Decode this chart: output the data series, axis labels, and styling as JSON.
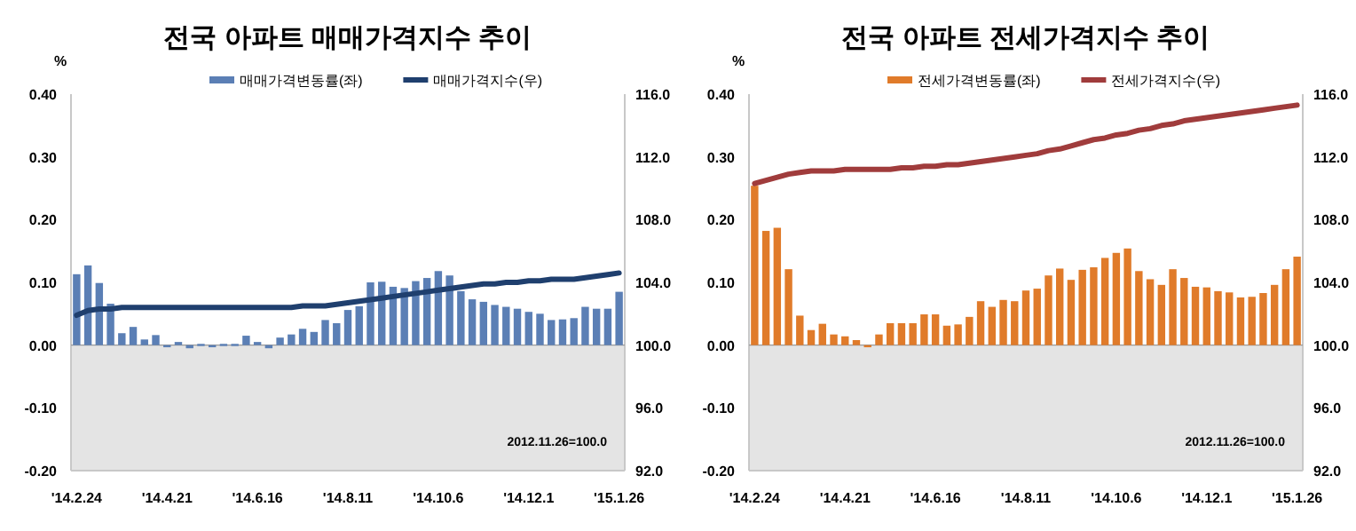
{
  "chart_data": [
    {
      "type": "bar",
      "title": "전국 아파트 매매가격지수 추이",
      "ylabel": "%",
      "legend": "top",
      "categories": [
        "'14.2.24",
        null,
        null,
        null,
        null,
        null,
        null,
        null,
        "'14.4.21",
        null,
        null,
        null,
        null,
        null,
        null,
        null,
        "'14.6.16",
        null,
        null,
        null,
        null,
        null,
        null,
        null,
        "'14.8.11",
        null,
        null,
        null,
        null,
        null,
        null,
        null,
        "'14.10.6",
        null,
        null,
        null,
        null,
        null,
        null,
        null,
        "'14.12.1",
        null,
        null,
        null,
        null,
        null,
        null,
        null,
        "'15.1.26"
      ],
      "series": [
        {
          "name": "매매가격변동률(좌)",
          "type": "bar",
          "color": "#5b7fb5",
          "values": [
            0.113,
            0.127,
            0.099,
            0.066,
            0.019,
            0.029,
            0.009,
            0.016,
            -0.003,
            0.005,
            -0.005,
            0.002,
            0.0,
            0.002,
            0.002,
            0.015,
            0.005,
            -0.005,
            0.012,
            0.017,
            0.026,
            0.021,
            0.04,
            0.035,
            0.056,
            0.062,
            0.1,
            0.101,
            0.093,
            0.091,
            0.102,
            0.107,
            0.118,
            0.111,
            0.086,
            0.073,
            0.069,
            0.064,
            0.061,
            0.058,
            0.053,
            0.05,
            0.04,
            0.041,
            0.043,
            0.061,
            0.058,
            0.058,
            0.085
          ]
        },
        {
          "name": "매매가격지수(우)",
          "type": "line",
          "axis": "y2",
          "color": "#1f3f6e",
          "values": [
            101.9,
            102.2,
            102.3,
            102.3,
            102.4,
            102.4,
            102.4,
            102.4,
            102.4,
            102.4,
            102.4,
            102.4,
            102.4,
            102.4,
            102.4,
            102.4,
            102.4,
            102.4,
            102.4,
            102.4,
            102.5,
            102.5,
            102.5,
            102.6,
            102.7,
            102.8,
            102.9,
            103.0,
            103.1,
            103.2,
            103.3,
            103.4,
            103.5,
            103.6,
            103.7,
            103.8,
            103.9,
            103.9,
            104.0,
            104.0,
            104.1,
            104.1,
            104.2,
            104.2,
            104.2,
            104.3,
            104.4,
            104.5,
            104.6
          ]
        }
      ],
      "ylim": [
        -0.2,
        0.4
      ],
      "yticks": [
        {
          "value": -0.2,
          "label": "-0.20"
        },
        {
          "value": -0.1,
          "label": "-0.10"
        },
        {
          "value": 0,
          "label": "0.00"
        },
        {
          "value": 0.1,
          "label": "0.10"
        },
        {
          "value": 0.2,
          "label": "0.20"
        },
        {
          "value": 0.3,
          "label": "0.30"
        },
        {
          "value": 0.4,
          "label": "0.40"
        }
      ],
      "y2lim": [
        92,
        116
      ],
      "y2ticks": [
        {
          "value": 92,
          "label": "92.0"
        },
        {
          "value": 96,
          "label": "96.0"
        },
        {
          "value": 100,
          "label": "100.0"
        },
        {
          "value": 104,
          "label": "104.0"
        },
        {
          "value": 108,
          "label": "108.0"
        },
        {
          "value": 112,
          "label": "112.0"
        },
        {
          "value": 116,
          "label": "116.0"
        }
      ],
      "bands": [
        {
          "axis": "y",
          "from": -0.2,
          "to": 0,
          "color": "#e4e4e4"
        }
      ],
      "annotations": [
        "2012.11.26=100.0"
      ]
    },
    {
      "type": "bar",
      "title": "전국 아파트  전세가격지수 추이",
      "ylabel": "%",
      "legend": "top",
      "categories": [
        "'14.2.24",
        null,
        null,
        null,
        null,
        null,
        null,
        null,
        "'14.4.21",
        null,
        null,
        null,
        null,
        null,
        null,
        null,
        "'14.6.16",
        null,
        null,
        null,
        null,
        null,
        null,
        null,
        "'14.8.11",
        null,
        null,
        null,
        null,
        null,
        null,
        null,
        "'14.10.6",
        null,
        null,
        null,
        null,
        null,
        null,
        null,
        "'14.12.1",
        null,
        null,
        null,
        null,
        null,
        null,
        null,
        "'15.1.26"
      ],
      "series": [
        {
          "name": "전세가격변동률(좌)",
          "type": "bar",
          "color": "#e07b2a",
          "values": [
            0.254,
            0.182,
            0.187,
            0.121,
            0.047,
            0.024,
            0.034,
            0.017,
            0.014,
            0.008,
            -0.003,
            0.017,
            0.035,
            0.035,
            0.035,
            0.049,
            0.049,
            0.031,
            0.033,
            0.045,
            0.07,
            0.061,
            0.072,
            0.07,
            0.087,
            0.09,
            0.111,
            0.122,
            0.104,
            0.12,
            0.124,
            0.139,
            0.147,
            0.154,
            0.118,
            0.105,
            0.096,
            0.121,
            0.107,
            0.093,
            0.092,
            0.086,
            0.084,
            0.076,
            0.077,
            0.083,
            0.096,
            0.121,
            0.141
          ]
        },
        {
          "name": "전세가격지수(우)",
          "type": "line",
          "axis": "y2",
          "color": "#a03c3c",
          "values": [
            110.3,
            110.5,
            110.7,
            110.9,
            111.0,
            111.1,
            111.1,
            111.1,
            111.2,
            111.2,
            111.2,
            111.2,
            111.2,
            111.3,
            111.3,
            111.4,
            111.4,
            111.5,
            111.5,
            111.6,
            111.7,
            111.8,
            111.9,
            112.0,
            112.1,
            112.2,
            112.4,
            112.5,
            112.7,
            112.9,
            113.1,
            113.2,
            113.4,
            113.5,
            113.7,
            113.8,
            114.0,
            114.1,
            114.3,
            114.4,
            114.5,
            114.6,
            114.7,
            114.8,
            114.9,
            115.0,
            115.1,
            115.2,
            115.3
          ]
        }
      ],
      "ylim": [
        -0.2,
        0.4
      ],
      "yticks": [
        {
          "value": -0.2,
          "label": "-0.20"
        },
        {
          "value": -0.1,
          "label": "-0.10"
        },
        {
          "value": 0,
          "label": "0.00"
        },
        {
          "value": 0.1,
          "label": "0.10"
        },
        {
          "value": 0.2,
          "label": "0.20"
        },
        {
          "value": 0.3,
          "label": "0.30"
        },
        {
          "value": 0.4,
          "label": "0.40"
        }
      ],
      "y2lim": [
        92,
        116
      ],
      "y2ticks": [
        {
          "value": 92,
          "label": "92.0"
        },
        {
          "value": 96,
          "label": "96.0"
        },
        {
          "value": 100,
          "label": "100.0"
        },
        {
          "value": 104,
          "label": "104.0"
        },
        {
          "value": 108,
          "label": "108.0"
        },
        {
          "value": 112,
          "label": "112.0"
        },
        {
          "value": 116,
          "label": "116.0"
        }
      ],
      "bands": [
        {
          "axis": "y",
          "from": -0.2,
          "to": 0,
          "color": "#e4e4e4"
        }
      ],
      "annotations": [
        "2012.11.26=100.0"
      ]
    }
  ]
}
